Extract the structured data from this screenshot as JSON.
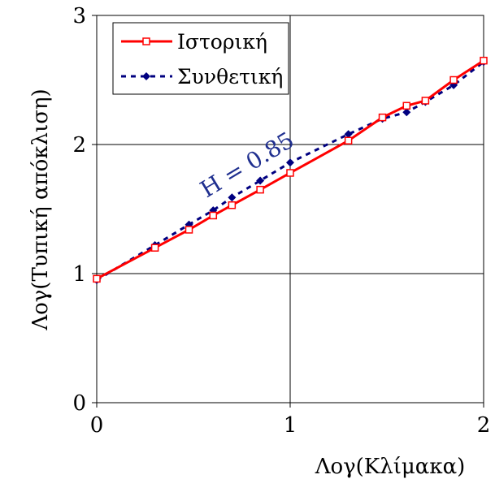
{
  "chart_data": {
    "type": "line",
    "xlabel": "Λογ(Κλίμακα)",
    "ylabel": "Λογ(Τυπική απόκλιση)",
    "xlim": [
      0,
      2
    ],
    "ylim": [
      0,
      3
    ],
    "x_ticks": [
      "0",
      "1",
      "2"
    ],
    "y_ticks": [
      "0",
      "1",
      "2",
      "3"
    ],
    "grid": true,
    "legend_position": "top-left",
    "annotation": "H = 0.85",
    "series": [
      {
        "name": "Ιστορική",
        "color": "#ff0000",
        "line_style": "solid",
        "marker": "open-square",
        "x": [
          0.0,
          0.301,
          0.477,
          0.602,
          0.699,
          0.845,
          1.0,
          1.301,
          1.477,
          1.602,
          1.699,
          1.845,
          2.0
        ],
        "y": [
          0.96,
          1.2,
          1.34,
          1.45,
          1.53,
          1.65,
          1.78,
          2.03,
          2.21,
          2.3,
          2.34,
          2.5,
          2.65
        ]
      },
      {
        "name": "Συνθετική",
        "color": "#000080",
        "line_style": "dashed",
        "marker": "filled-diamond",
        "x": [
          0.0,
          0.301,
          0.477,
          0.602,
          0.699,
          0.845,
          1.0,
          1.301,
          1.477,
          1.602,
          1.699,
          1.845,
          2.0
        ],
        "y": [
          0.95,
          1.22,
          1.38,
          1.49,
          1.59,
          1.72,
          1.86,
          2.08,
          2.2,
          2.25,
          2.33,
          2.46,
          2.64
        ]
      }
    ]
  }
}
